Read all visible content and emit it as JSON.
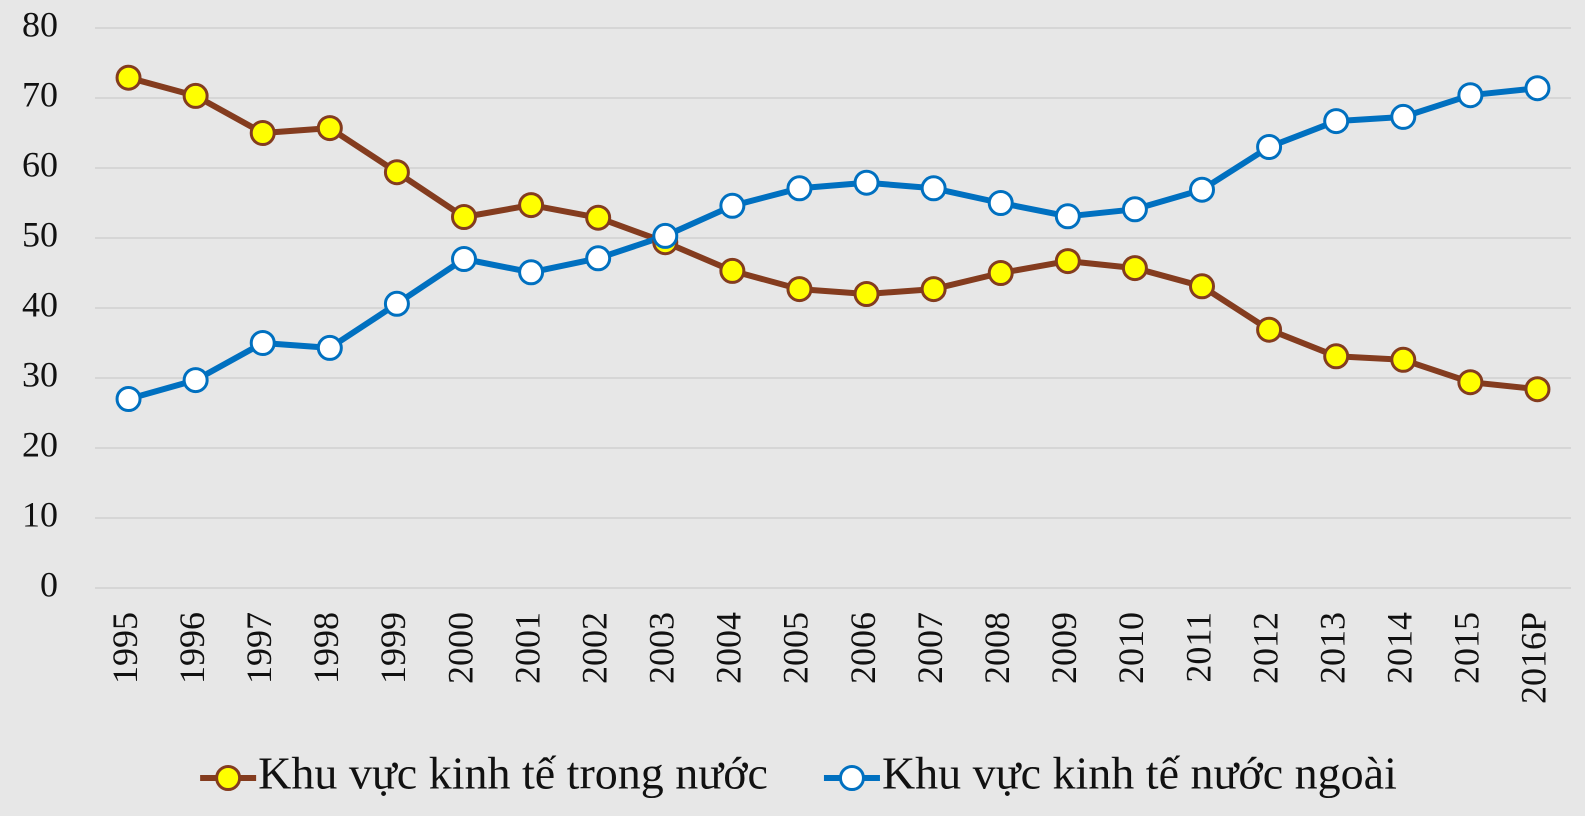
{
  "chart_data": {
    "type": "line",
    "categories": [
      "1995",
      "1996",
      "1997",
      "1998",
      "1999",
      "2000",
      "2001",
      "2002",
      "2003",
      "2004",
      "2005",
      "2006",
      "2007",
      "2008",
      "2009",
      "2010",
      "2011",
      "2012",
      "2013",
      "2014",
      "2015",
      "2016P"
    ],
    "series": [
      {
        "name": "Khu vực kinh tế trong nước",
        "color": "#843c1f",
        "marker_color": "#ffff00",
        "values": [
          72.9,
          70.3,
          65.0,
          65.7,
          59.4,
          53.0,
          54.7,
          52.9,
          49.4,
          45.3,
          42.7,
          42.0,
          42.7,
          45.0,
          46.7,
          45.7,
          43.1,
          36.9,
          33.1,
          32.6,
          29.4,
          28.4
        ]
      },
      {
        "name": "Khu vực kinh tế nước ngoài",
        "color": "#0070c0",
        "marker_color": "#ffffff",
        "values": [
          27.0,
          29.7,
          35.0,
          34.3,
          40.6,
          47.0,
          45.1,
          47.1,
          50.3,
          54.6,
          57.1,
          57.9,
          57.1,
          55.0,
          53.1,
          54.1,
          56.9,
          63.0,
          66.7,
          67.3,
          70.4,
          71.4
        ]
      }
    ],
    "ylim": [
      0,
      80
    ],
    "yticks": [
      0,
      10,
      20,
      30,
      40,
      50,
      60,
      70,
      80
    ],
    "grid": true,
    "legend": "bottom"
  }
}
